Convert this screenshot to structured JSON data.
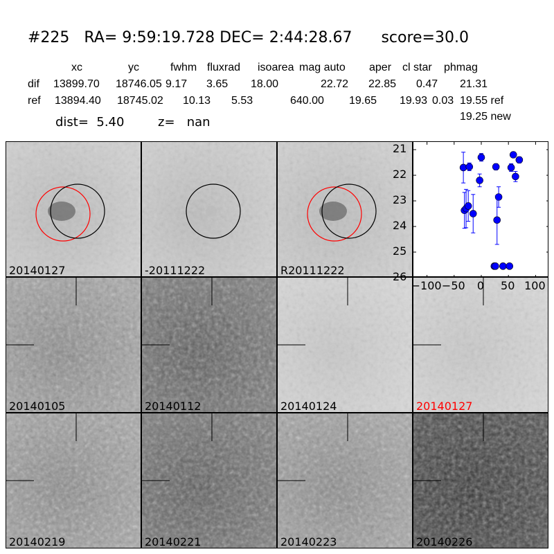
{
  "header": {
    "title": "#225   RA= 9:59:19.728 DEC= 2:44:28.67      score=30.0",
    "columns": [
      "xc",
      "yc",
      "fwhm",
      "fluxrad",
      "isoarea",
      "mag auto",
      "aper",
      "cl star",
      "phmag"
    ],
    "dif": {
      "label": "dif",
      "values": [
        "13899.70",
        "18746.05",
        "9.17",
        "3.65",
        "18.00",
        "22.72",
        "22.85",
        "0.47",
        "21.31"
      ]
    },
    "ref": {
      "label": "ref",
      "values": [
        "13894.40",
        "18745.02",
        "10.13",
        "5.53",
        "640.00",
        "19.65",
        "19.93",
        "0.03",
        "19.55 ref"
      ]
    },
    "new_mag": "19.25 new",
    "dist": "dist=  5.40",
    "z": "z=   nan"
  },
  "panels": [
    {
      "label": "20140127",
      "tone": "light",
      "circles": [
        "red",
        "black"
      ]
    },
    {
      "label": "-20111222",
      "tone": "light",
      "circles": [
        "black"
      ]
    },
    {
      "label": "R20111222",
      "tone": "light",
      "circles": [
        "red",
        "black"
      ]
    },
    {
      "label": "20140105",
      "tone": "mid"
    },
    {
      "label": "20140112",
      "tone": "dark"
    },
    {
      "label": "20140124",
      "tone": "verylight"
    },
    {
      "label": "20140127",
      "tone": "verylight",
      "label_color": "#ff0000"
    },
    {
      "label": "20140219",
      "tone": "mid"
    },
    {
      "label": "20140221",
      "tone": "dark"
    },
    {
      "label": "20140223",
      "tone": "mid"
    },
    {
      "label": "20140226",
      "tone": "verydark"
    }
  ],
  "chart_data": {
    "type": "scatter",
    "xlim": [
      -125,
      125
    ],
    "ylim": [
      26,
      20.7
    ],
    "y_inverted": true,
    "xticks": [
      "−100",
      "−50",
      "0",
      "50",
      "100"
    ],
    "xtick_values": [
      -100,
      -50,
      0,
      50,
      100
    ],
    "yticks": [
      "21",
      "22",
      "23",
      "24",
      "25",
      "26"
    ],
    "ytick_values": [
      21,
      22,
      23,
      24,
      25,
      26
    ],
    "marker_color": "#0000ff",
    "points": [
      {
        "x": -33,
        "y": 21.7,
        "err": 0.6
      },
      {
        "x": -22,
        "y": 21.67,
        "err": 0.15
      },
      {
        "x": 0,
        "y": 21.3,
        "err": 0.15
      },
      {
        "x": -3,
        "y": 22.2,
        "err": 0.25
      },
      {
        "x": -31,
        "y": 23.37,
        "err": 0.7
      },
      {
        "x": -28,
        "y": 23.3,
        "err": 0.75
      },
      {
        "x": -24,
        "y": 23.2,
        "err": 0.6
      },
      {
        "x": -15,
        "y": 23.5,
        "err": 0.75
      },
      {
        "x": 27,
        "y": 21.67,
        "err": 0.12
      },
      {
        "x": 32,
        "y": 22.85,
        "err": 0.4
      },
      {
        "x": 29,
        "y": 23.75,
        "err": 0.95
      },
      {
        "x": 24,
        "y": 25.55,
        "err": 0.08
      },
      {
        "x": 26,
        "y": 25.55,
        "err": 0.08
      },
      {
        "x": 40,
        "y": 25.55,
        "err": 0.08
      },
      {
        "x": 52,
        "y": 25.55,
        "err": 0.08
      },
      {
        "x": 55,
        "y": 21.7,
        "err": 0.15
      },
      {
        "x": 59,
        "y": 21.2,
        "err": 0.05
      },
      {
        "x": 63,
        "y": 22.05,
        "err": 0.2
      },
      {
        "x": 70,
        "y": 21.4,
        "err": 0.12
      }
    ]
  }
}
